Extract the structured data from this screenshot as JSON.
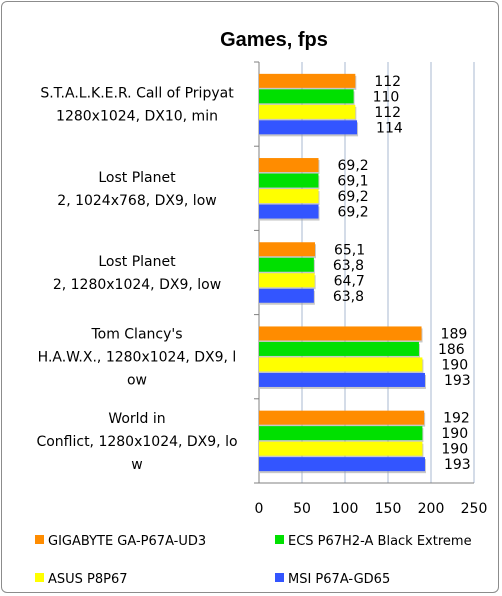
{
  "chart_data": {
    "type": "bar",
    "orientation": "horizontal",
    "title": "Games, fps",
    "xlabel": "",
    "ylabel": "",
    "xlim": [
      0,
      250
    ],
    "x_ticks": [
      0,
      50,
      100,
      150,
      200,
      250
    ],
    "grid": "vertical",
    "legend_position": "bottom",
    "categories": [
      [
        "S.T.A.L.K.E.R. Call of Pripyat",
        "1280x1024, DX10, min"
      ],
      [
        "Lost Planet",
        "2, 1024x768, DX9, low"
      ],
      [
        "Lost Planet",
        "2, 1280x1024, DX9, low"
      ],
      [
        "Tom Clancy's",
        "H.A.W.X., 1280x1024, DX9, l",
        "ow"
      ],
      [
        "World in",
        "Conflict, 1280x1024, DX9, lo",
        "w"
      ]
    ],
    "series": [
      {
        "name": "GIGABYTE GA-P67A-UD3",
        "color": "#ff8c00",
        "values": [
          112,
          69.2,
          65.1,
          189,
          192
        ],
        "labels": [
          "112",
          "69,2",
          "65,1",
          "189",
          "192"
        ]
      },
      {
        "name": "ECS P67H2-A Black Extreme",
        "color": "#00e000",
        "values": [
          110,
          69.1,
          63.8,
          186,
          190
        ],
        "labels": [
          "110",
          "69,1",
          "63,8",
          "186",
          "190"
        ]
      },
      {
        "name": "ASUS P8P67",
        "color": "#ffff00",
        "values": [
          112,
          69.2,
          64.7,
          190,
          190
        ],
        "labels": [
          "112",
          "69,2",
          "64,7",
          "190",
          "190"
        ]
      },
      {
        "name": "MSI P67A-GD65",
        "color": "#3355ff",
        "values": [
          114,
          69.2,
          63.8,
          193,
          193
        ],
        "labels": [
          "114",
          "69,2",
          "63,8",
          "193",
          "193"
        ]
      }
    ]
  }
}
